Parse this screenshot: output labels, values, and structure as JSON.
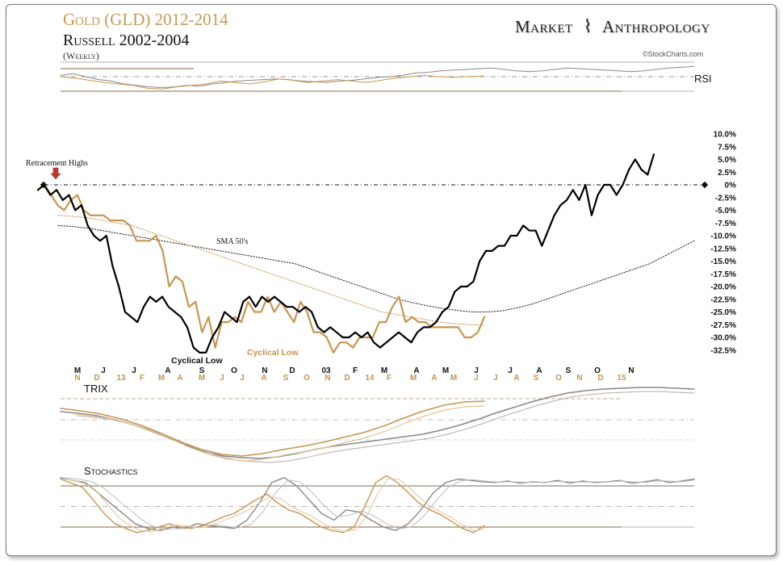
{
  "header": {
    "title_gold": "Gold (GLD) 2012-2014",
    "title_russell": "Russell 2002-2004",
    "subtitle": "(Weekly)",
    "brand_left": "Market",
    "brand_right": "Anthropology",
    "brand_icon": "dna-helix-icon",
    "credit": "©StockCharts.com"
  },
  "colors": {
    "gold": "#c8954e",
    "gold_light": "#e0c39a",
    "russell": "#000000",
    "grey": "#888888",
    "grey_light": "#bdbdbd"
  },
  "chart_data": [
    {
      "type": "line",
      "panel": "RSI",
      "label": "RSI",
      "series": [
        {
          "values": [
            52,
            54,
            50,
            46,
            44,
            40,
            38,
            36,
            35,
            36,
            38,
            37,
            40,
            42,
            44,
            45,
            46,
            47,
            46,
            44,
            43,
            42,
            44,
            45,
            47,
            49,
            50,
            52,
            55,
            56,
            58,
            59,
            60,
            61,
            62,
            60,
            58,
            57,
            58,
            60,
            62,
            61,
            60,
            59,
            58,
            57,
            58,
            60,
            62,
            63,
            64
          ]
        },
        {
          "values": [
            50,
            48,
            45,
            42,
            40,
            38,
            34,
            33,
            36,
            38,
            40,
            44,
            42,
            40,
            43,
            47,
            45,
            42,
            44,
            46,
            44,
            42,
            45,
            48,
            50,
            52,
            50,
            49,
            50,
            51
          ]
        }
      ]
    },
    {
      "type": "line",
      "panel": "price",
      "y_unit": "%",
      "y_ticks": [
        "10.0%",
        "7.5%",
        "5.0%",
        "2.5%",
        "0%",
        "-2.5%",
        "-5.0%",
        "-7.5%",
        "-10.0%",
        "-12.5%",
        "-15.0%",
        "-17.5%",
        "-20.0%",
        "-22.5%",
        "-25.0%",
        "-27.5%",
        "-30.0%",
        "-32.5%"
      ],
      "ylim": [
        -33.5,
        11
      ],
      "x_ticks_russell": [
        "M",
        "J",
        "J",
        "A",
        "S",
        "O",
        "N",
        "D",
        "03",
        "F",
        "M",
        "A",
        "M",
        "J",
        "J",
        "A",
        "S",
        "O",
        "N"
      ],
      "x_ticks_gold": [
        "N",
        "D",
        "13",
        "F",
        "M",
        "A",
        "M",
        "J",
        "J",
        "A",
        "S",
        "O",
        "N",
        "D",
        "14",
        "F",
        "M",
        "A",
        "M",
        "J",
        "J",
        "A",
        "S",
        "O",
        "N",
        "D",
        "15"
      ],
      "annotations": [
        {
          "text": "Retracement Highs",
          "value": 0
        },
        {
          "text": "SMA 50's"
        },
        {
          "text": "Cyclical Low",
          "series": "Russell"
        },
        {
          "text": "Cyclical Low",
          "series": "Gold"
        }
      ],
      "series": [
        {
          "values": [
            -1,
            0,
            -2,
            -1,
            -3,
            -2,
            -5,
            -4,
            -8,
            -10,
            -11,
            -10,
            -16,
            -20,
            -25,
            -26,
            -27,
            -24,
            -22,
            -23,
            -22,
            -24,
            -25,
            -26,
            -28,
            -32,
            -33,
            -33,
            -30,
            -28,
            -25,
            -26,
            -27,
            -23,
            -22,
            -24,
            -22,
            -23,
            -22,
            -23,
            -24,
            -24,
            -25,
            -24,
            -25,
            -28,
            -29,
            -28,
            -29,
            -30,
            -30,
            -29,
            -30,
            -29,
            -31,
            -32,
            -31,
            -30,
            -29,
            -30,
            -31,
            -29,
            -28,
            -28,
            -27,
            -25,
            -24,
            -21,
            -20,
            -20,
            -19,
            -15,
            -13,
            -13,
            -12,
            -12,
            -10,
            -10,
            -8,
            -9,
            -9,
            -12,
            -9,
            -6,
            -4,
            -3,
            -1,
            -3,
            0,
            -6,
            -2,
            0,
            0,
            -2,
            0,
            3,
            5,
            3,
            2,
            6
          ]
        },
        {
          "values": [
            -1,
            0,
            -2,
            -4,
            -5,
            -3,
            -2,
            -5,
            -6,
            -6,
            -6,
            -7,
            -7,
            -7,
            -8,
            -11,
            -11,
            -11,
            -10,
            -13,
            -20,
            -18,
            -19,
            -24,
            -23,
            -29,
            -26,
            -32,
            -27,
            -27,
            -26,
            -27,
            -23,
            -25,
            -25,
            -22,
            -25,
            -23,
            -25,
            -27,
            -23,
            -25,
            -29,
            -29,
            -30,
            -33,
            -31,
            -31,
            -32,
            -30,
            -30,
            -30,
            -27,
            -27,
            -24,
            -22,
            -27,
            -26,
            -27,
            -27,
            -28,
            -28,
            -28,
            -28,
            -28,
            -30,
            -30,
            -29,
            -26
          ]
        },
        {
          "values": [
            -8,
            -8.2,
            -8.5,
            -9,
            -9.5,
            -10,
            -10.5,
            -11,
            -11.5,
            -12,
            -12.5,
            -13,
            -13.5,
            -14,
            -14.5,
            -15,
            -15.5,
            -16.5,
            -17.5,
            -18.5,
            -19.5,
            -20.5,
            -21.5,
            -22.5,
            -23.2,
            -23.8,
            -24.3,
            -24.7,
            -25,
            -25,
            -24.8,
            -24.2,
            -23.5,
            -22.5,
            -21.5,
            -20.5,
            -19.5,
            -18.5,
            -17.5,
            -16.5,
            -15.5,
            -14,
            -12.5,
            -11
          ]
        },
        {
          "values": [
            -6,
            -6.2,
            -6.5,
            -7,
            -7.5,
            -8,
            -9,
            -10,
            -11,
            -12,
            -13,
            -14,
            -15,
            -16,
            -17,
            -18,
            -19,
            -20,
            -21,
            -22,
            -23,
            -24,
            -25,
            -25.5,
            -26,
            -26.5,
            -27,
            -27.3,
            -27.5,
            -27.6
          ]
        }
      ]
    },
    {
      "type": "line",
      "panel": "TRIX",
      "label": "TRIX",
      "series": [
        {
          "values": [
            60,
            58,
            55,
            50,
            44,
            36,
            27,
            18,
            10,
            5,
            3,
            2,
            4,
            8,
            13,
            17,
            20,
            23,
            26,
            29,
            32,
            37,
            43,
            50,
            58,
            65,
            72,
            78,
            83,
            86,
            88,
            89,
            90,
            90,
            89,
            88
          ]
        },
        {
          "values": [
            64,
            61,
            57,
            51,
            43,
            33,
            22,
            13,
            7,
            5,
            8,
            13,
            17,
            22,
            28,
            34,
            42,
            52,
            61,
            68,
            72,
            73
          ]
        }
      ]
    },
    {
      "type": "line",
      "panel": "Stochastics",
      "label": "Stochastics",
      "series": [
        {
          "values": [
            92,
            88,
            85,
            70,
            55,
            40,
            25,
            18,
            15,
            20,
            18,
            25,
            22,
            20,
            18,
            30,
            55,
            85,
            92,
            80,
            60,
            40,
            30,
            45,
            42,
            30,
            20,
            15,
            25,
            45,
            70,
            85,
            90,
            88,
            86,
            85,
            87,
            84,
            86,
            85,
            88,
            84,
            87,
            85,
            86,
            88,
            84,
            86,
            89,
            85,
            87,
            90
          ]
        },
        {
          "values": [
            90,
            84,
            78,
            60,
            40,
            25,
            18,
            12,
            15,
            20,
            25,
            20,
            18,
            22,
            28,
            35,
            40,
            50,
            60,
            68,
            55,
            45,
            40,
            30,
            20,
            15,
            12,
            20,
            50,
            85,
            95,
            85,
            70,
            55,
            45,
            38,
            28,
            18,
            12,
            22
          ]
        }
      ]
    }
  ]
}
